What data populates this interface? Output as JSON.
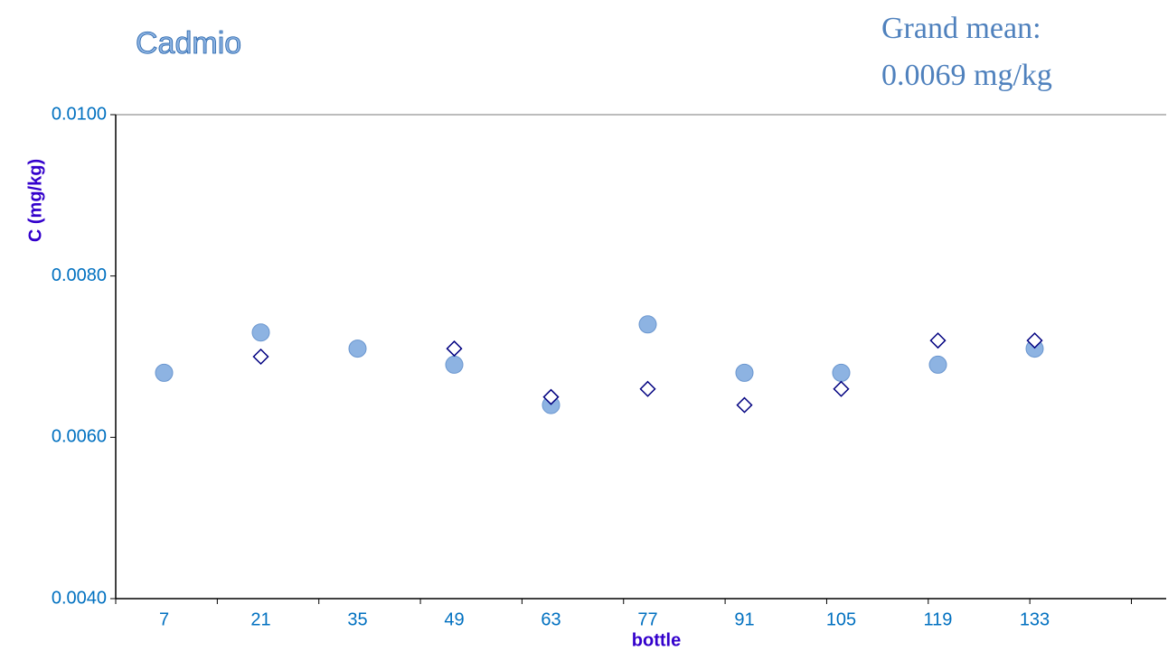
{
  "chart_data": {
    "type": "scatter",
    "title": "Cadmio",
    "annotation": [
      "Grand mean:",
      "0.0069 mg/kg"
    ],
    "x_label": "bottle",
    "y_label": "C (mg/kg)",
    "categories": [
      "7",
      "21",
      "35",
      "49",
      "63",
      "77",
      "91",
      "105",
      "119",
      "133"
    ],
    "series": [
      {
        "marker": "circle",
        "color": "#8db3e2",
        "values": [
          0.0068,
          0.0073,
          0.0071,
          0.0069,
          0.0064,
          0.0074,
          0.0068,
          0.0068,
          0.0069,
          0.0071
        ]
      },
      {
        "marker": "diamond",
        "color": "#000080",
        "values": [
          null,
          0.007,
          null,
          0.0071,
          0.0065,
          0.0066,
          0.0064,
          0.0066,
          0.0072,
          0.0072
        ]
      }
    ],
    "ylim": [
      0.004,
      0.01
    ],
    "yticks": [
      {
        "value": 0.004,
        "label": "0.0040"
      },
      {
        "value": 0.006,
        "label": "0.0060"
      },
      {
        "value": 0.008,
        "label": "0.0080"
      },
      {
        "value": 0.01,
        "label": "0.0100"
      }
    ]
  }
}
